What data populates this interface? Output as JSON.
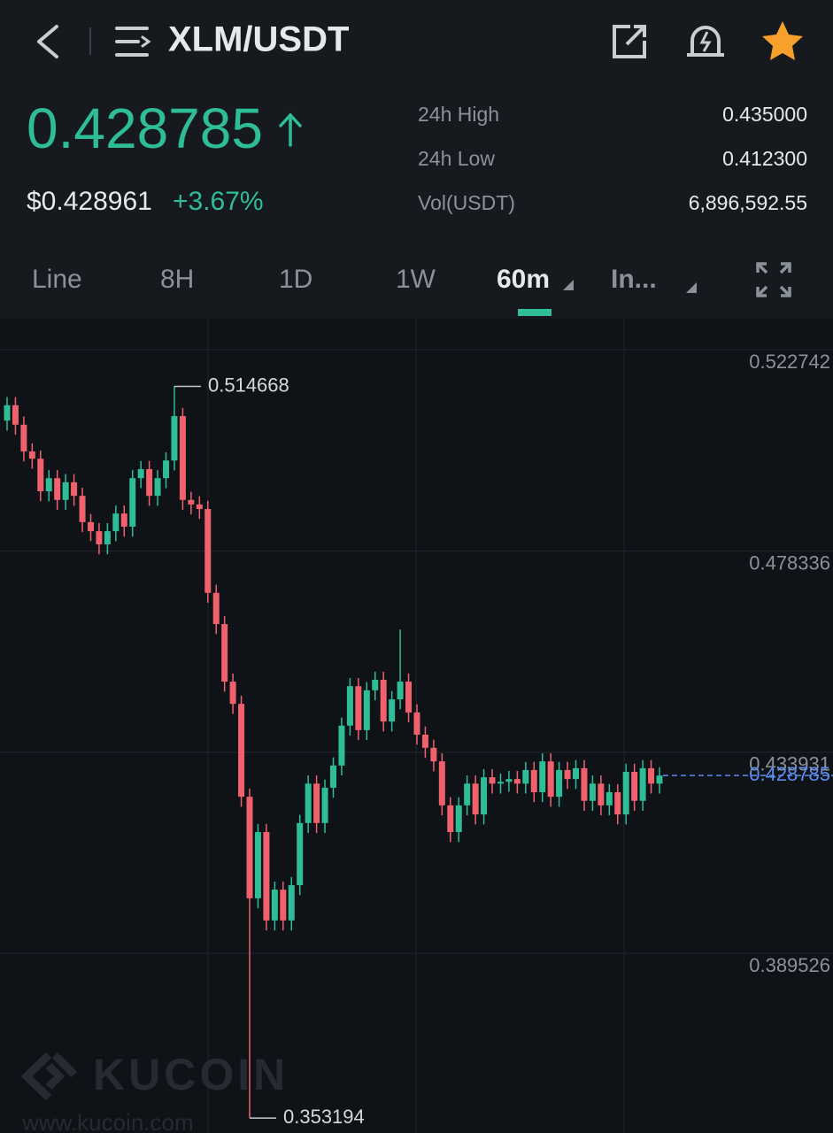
{
  "header": {
    "pair": "XLM/USDT"
  },
  "ticker": {
    "price": "0.428785",
    "fiat_price": "$0.428961",
    "change": "+3.67%",
    "stats": [
      {
        "label": "24h High",
        "value": "0.435000"
      },
      {
        "label": "24h Low",
        "value": "0.412300"
      },
      {
        "label": "Vol(USDT)",
        "value": "6,896,592.55"
      }
    ]
  },
  "tabs": [
    "Line",
    "8H",
    "1D",
    "1W",
    "60m",
    "In..."
  ],
  "watermark": {
    "brand": "KUCOIN",
    "url": "www.kucoin.com"
  },
  "chart_data": {
    "type": "candlestick",
    "open": [
      0.5071,
      0.5105,
      0.5062,
      0.5003,
      0.4987,
      0.4915,
      0.4944,
      0.4896,
      0.4935,
      0.4905,
      0.4847,
      0.4827,
      0.4798,
      0.4827,
      0.4866,
      0.4837,
      0.4944,
      0.4964,
      0.4905,
      0.4944,
      0.4983,
      0.5081,
      0.4896,
      0.4886,
      0.4876,
      0.4691,
      0.4622,
      0.4495,
      0.4446,
      0.4241,
      0.4017,
      0.4163,
      0.3968,
      0.4036,
      0.3968,
      0.4046,
      0.4183,
      0.427,
      0.4183,
      0.4261,
      0.431,
      0.4398,
      0.4485,
      0.4388,
      0.4476,
      0.4499,
      0.4407,
      0.4456,
      0.4495,
      0.4427,
      0.4378,
      0.4349,
      0.4319,
      0.4222,
      0.4163,
      0.4222,
      0.427,
      0.4202,
      0.4284,
      0.427,
      0.4274,
      0.428,
      0.427,
      0.43,
      0.4251,
      0.4319,
      0.4241,
      0.43,
      0.428,
      0.4304,
      0.4232,
      0.427,
      0.4222,
      0.4251,
      0.4202,
      0.4296,
      0.4232,
      0.4304,
      0.427
    ],
    "high": [
      0.5123,
      0.5123,
      0.508,
      0.5021,
      0.5005,
      0.4962,
      0.4962,
      0.4953,
      0.4953,
      0.4923,
      0.4865,
      0.4845,
      0.4845,
      0.4884,
      0.4884,
      0.4962,
      0.4982,
      0.4982,
      0.4962,
      0.5001,
      0.514668,
      0.5099,
      0.4914,
      0.4904,
      0.4894,
      0.4709,
      0.464,
      0.4513,
      0.4464,
      0.4259,
      0.4181,
      0.4181,
      0.4054,
      0.4054,
      0.4064,
      0.4201,
      0.4288,
      0.4288,
      0.4279,
      0.4328,
      0.4416,
      0.4503,
      0.4503,
      0.4494,
      0.4517,
      0.4517,
      0.4474,
      0.461,
      0.4513,
      0.4445,
      0.4396,
      0.4367,
      0.4337,
      0.424,
      0.424,
      0.4288,
      0.4288,
      0.4302,
      0.4302,
      0.4292,
      0.4298,
      0.4298,
      0.4318,
      0.4318,
      0.4337,
      0.4337,
      0.4318,
      0.4318,
      0.4322,
      0.4322,
      0.4288,
      0.4288,
      0.4269,
      0.4269,
      0.4314,
      0.4314,
      0.4322,
      0.4322,
      0.4306
    ],
    "low": [
      0.5049,
      0.504,
      0.4981,
      0.4965,
      0.4893,
      0.4893,
      0.4874,
      0.4874,
      0.4883,
      0.4825,
      0.4805,
      0.4776,
      0.4776,
      0.4805,
      0.4815,
      0.4815,
      0.4922,
      0.4883,
      0.4883,
      0.4922,
      0.4961,
      0.4874,
      0.4864,
      0.4854,
      0.4669,
      0.46,
      0.4473,
      0.4424,
      0.4219,
      0.353194,
      0.3995,
      0.3946,
      0.3946,
      0.3946,
      0.3946,
      0.4024,
      0.4161,
      0.4161,
      0.4161,
      0.4239,
      0.4288,
      0.4376,
      0.4366,
      0.4366,
      0.4454,
      0.4385,
      0.4385,
      0.4434,
      0.4405,
      0.4356,
      0.4327,
      0.4297,
      0.42,
      0.4141,
      0.4141,
      0.42,
      0.418,
      0.418,
      0.4248,
      0.4248,
      0.4252,
      0.4248,
      0.4248,
      0.4229,
      0.4229,
      0.4219,
      0.4219,
      0.4258,
      0.4258,
      0.421,
      0.421,
      0.42,
      0.42,
      0.418,
      0.418,
      0.421,
      0.421,
      0.4248,
      0.4248
    ],
    "close": [
      0.5105,
      0.5062,
      0.5003,
      0.4987,
      0.4915,
      0.4944,
      0.4896,
      0.4935,
      0.4905,
      0.4847,
      0.4827,
      0.4798,
      0.4827,
      0.4866,
      0.4837,
      0.4944,
      0.4964,
      0.4905,
      0.4944,
      0.4983,
      0.5081,
      0.4896,
      0.4886,
      0.4876,
      0.4691,
      0.4622,
      0.4495,
      0.4446,
      0.4241,
      0.4017,
      0.4163,
      0.3968,
      0.4036,
      0.3968,
      0.4046,
      0.4183,
      0.427,
      0.4183,
      0.4261,
      0.431,
      0.4398,
      0.4485,
      0.4388,
      0.4476,
      0.4499,
      0.4407,
      0.4456,
      0.4495,
      0.4427,
      0.4378,
      0.4349,
      0.4319,
      0.4222,
      0.4163,
      0.4222,
      0.427,
      0.4202,
      0.4284,
      0.427,
      0.4274,
      0.428,
      0.427,
      0.43,
      0.4251,
      0.4319,
      0.4241,
      0.43,
      0.428,
      0.4304,
      0.4232,
      0.427,
      0.4222,
      0.4251,
      0.4202,
      0.4296,
      0.4232,
      0.4304,
      0.427,
      0.428785
    ],
    "ylim": [
      0.3499,
      0.5296
    ],
    "yticks": [
      0.522742,
      0.478336,
      0.433931,
      0.389526
    ],
    "grid": true,
    "up_color": "#2ebd96",
    "down_color": "#f0616d"
  }
}
